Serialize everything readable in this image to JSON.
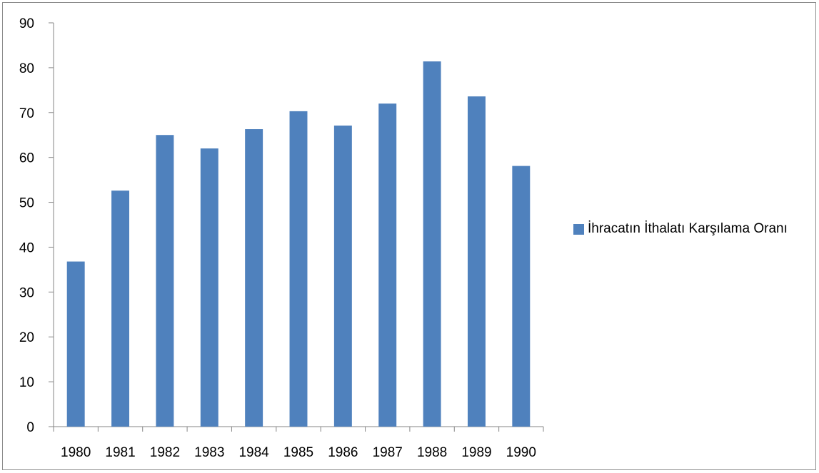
{
  "chart_data": {
    "type": "bar",
    "title": "",
    "xlabel": "",
    "ylabel": "",
    "categories": [
      "1980",
      "1981",
      "1982",
      "1983",
      "1984",
      "1985",
      "1986",
      "1987",
      "1988",
      "1989",
      "1990"
    ],
    "series": [
      {
        "name": "İhracatın İthalatı Karşılama Oranı",
        "color": "#4f81bd",
        "values": [
          36.8,
          52.6,
          65.0,
          62.0,
          66.3,
          70.3,
          67.1,
          72.0,
          81.4,
          73.6,
          58.1
        ]
      }
    ],
    "ylim": [
      0,
      90
    ],
    "yticks": [
      0,
      10,
      20,
      30,
      40,
      50,
      60,
      70,
      80,
      90
    ],
    "grid": false,
    "legend_position": "right"
  }
}
